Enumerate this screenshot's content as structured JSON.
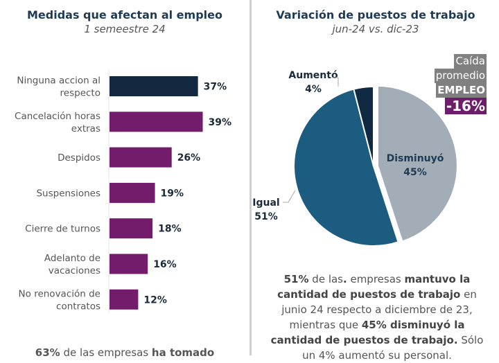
{
  "chart_data": [
    {
      "type": "bar",
      "orientation": "horizontal",
      "title": "Medidas que afectan al empleo",
      "subtitle": "1 semeestre 24",
      "categories": [
        [
          "Ninguna accion al",
          "respecto"
        ],
        [
          "Cancelación horas",
          "extras"
        ],
        [
          "Despidos"
        ],
        [
          "Suspensiones"
        ],
        [
          "Cierre de turnos"
        ],
        [
          "Adelanto de",
          "vacaciones"
        ],
        [
          "No renovación de",
          "contratos"
        ]
      ],
      "values": [
        37,
        39,
        26,
        19,
        18,
        16,
        12
      ],
      "value_labels": [
        "37%",
        "39%",
        "26%",
        "19%",
        "18%",
        "16%",
        "12%"
      ],
      "colors": [
        "#14293f",
        "#741c6c",
        "#741c6c",
        "#741c6c",
        "#741c6c",
        "#741c6c",
        "#741c6c"
      ],
      "xlim": [
        0,
        50
      ],
      "grid": false,
      "legend": "none"
    },
    {
      "type": "pie",
      "title": "Variación de puestos de trabajo",
      "subtitle": "jun-24 vs. dic-23",
      "slices": [
        {
          "label": "Disminuyó",
          "value": 45,
          "value_label": "45%",
          "color": "#a2adb7",
          "exploded": true
        },
        {
          "label": "Igual",
          "value": 51,
          "value_label": "51%",
          "color": "#1c5c80",
          "exploded": false
        },
        {
          "label": "Aumentó",
          "value": 4,
          "value_label": "4%",
          "color": "#112a43",
          "exploded": false
        }
      ],
      "legend": "none",
      "annotation": {
        "lines": [
          "Caída",
          "promedio",
          "EMPLEO"
        ],
        "value": "-16%",
        "box_color": "#808080",
        "value_color": "#6e1d6b"
      }
    }
  ],
  "left_panel": {
    "title": "Medidas que afectan al empleo",
    "subtitle": "1 semeestre 24",
    "footer_parts": [
      {
        "text": "63%",
        "bold": true
      },
      {
        "text": " de las empresas ",
        "bold": false
      },
      {
        "text": "ha tomado",
        "bold": true
      }
    ]
  },
  "right_panel": {
    "title": "Variación de puestos de trabajo",
    "subtitle": "jun-24 vs. dic-23",
    "badge": {
      "line1": "Caída",
      "line2": "promedio",
      "line3": "EMPLEO",
      "value": "-16%"
    },
    "summary_parts": [
      {
        "text": "51%",
        "bold": true
      },
      {
        "text": " de las",
        "bold": false
      },
      {
        "text": ".",
        "bold": true
      },
      {
        "text": " empresas ",
        "bold": false
      },
      {
        "text": "mantuvo la cantidad de puestos de trabajo",
        "bold": true
      },
      {
        "text": " en junio 24 respecto a diciembre de 23, mientras que ",
        "bold": false
      },
      {
        "text": "45% disminuyó la cantidad de puestos de trabajo.",
        "bold": true
      },
      {
        "text": " Sólo un 4% aumentó su personal.",
        "bold": false
      }
    ]
  }
}
